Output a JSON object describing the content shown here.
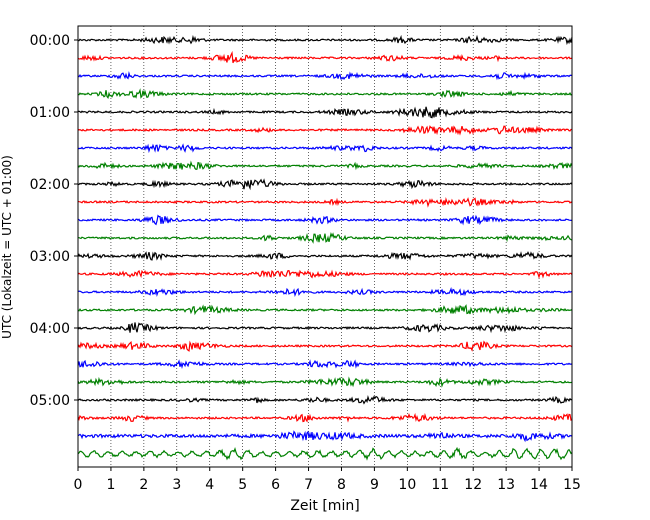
{
  "chart_data": {
    "type": "line",
    "subtype": "helicorder",
    "title": "",
    "xlabel": "Zeit  [min]",
    "ylabel": "UTC (Lokalzeit = UTC + 01:00)",
    "xlim": [
      0,
      15
    ],
    "x_ticks": [
      "0",
      "1",
      "2",
      "3",
      "4",
      "5",
      "6",
      "7",
      "8",
      "9",
      "10",
      "11",
      "12",
      "13",
      "14",
      "15"
    ],
    "y_tick_labels": [
      "00:00",
      "01:00",
      "02:00",
      "03:00",
      "04:00",
      "05:00"
    ],
    "rows_per_hour": 4,
    "minutes_per_row": 15,
    "row_count": 24,
    "trace_colors": [
      "#000000",
      "#ff0000",
      "#0000ff",
      "#008000"
    ],
    "x_grid": "dotted",
    "y_grid": false,
    "legend": false
  }
}
